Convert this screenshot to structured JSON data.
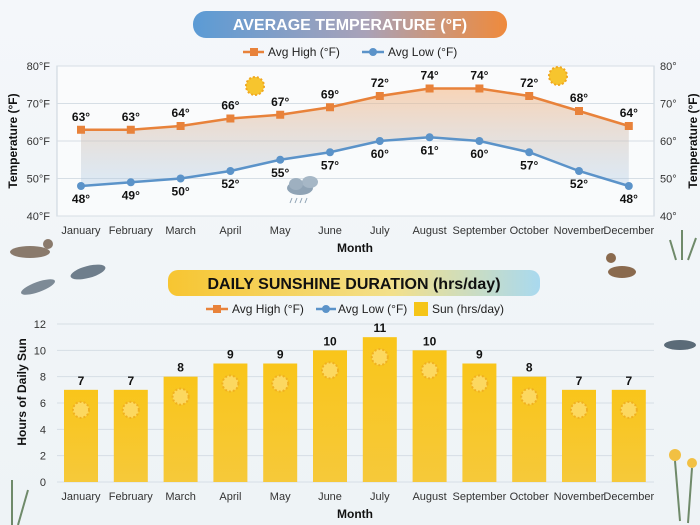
{
  "chart_data": [
    {
      "type": "line",
      "title": "AVERAGE TEMPERATURE (°F)",
      "xlabel": "Month",
      "ylabel": "Temperature (°F)",
      "ylabel_right": "Temperature (°F)",
      "categories": [
        "January",
        "February",
        "March",
        "April",
        "May",
        "June",
        "July",
        "August",
        "September",
        "October",
        "November",
        "December"
      ],
      "ylim": [
        40,
        80
      ],
      "yticks": [
        "40°F",
        "50°F",
        "60°F",
        "70°F",
        "80°F"
      ],
      "yticks_right": [
        "40°",
        "50°",
        "60°",
        "70°",
        "80°"
      ],
      "grid": true,
      "legend": "top-center",
      "series": [
        {
          "name": "Avg High (°F)",
          "color": "#e8823a",
          "values": [
            63,
            63,
            64,
            66,
            67,
            69,
            72,
            74,
            74,
            72,
            68,
            64
          ],
          "labels": [
            "63°",
            "63°",
            "64°",
            "66°",
            "67°",
            "69°",
            "72°",
            "74°",
            "74°",
            "72°",
            "68°",
            "64°"
          ]
        },
        {
          "name": "Avg Low (°F)",
          "color": "#5b93c9",
          "values": [
            48,
            49,
            50,
            52,
            55,
            57,
            60,
            61,
            60,
            57,
            52,
            48
          ],
          "labels": [
            "48°",
            "49°",
            "50°",
            "52°",
            "55°",
            "57°",
            "60°",
            "61°",
            "60°",
            "57°",
            "52°",
            "48°"
          ]
        }
      ]
    },
    {
      "type": "bar",
      "title": "DAILY SUNSHINE DURATION (hrs/day)",
      "xlabel": "Month",
      "ylabel": "Hours of Daily Sun",
      "categories": [
        "January",
        "February",
        "March",
        "April",
        "May",
        "June",
        "July",
        "August",
        "September",
        "October",
        "November",
        "December"
      ],
      "ylim": [
        0,
        12
      ],
      "yticks": [
        "0",
        "2",
        "4",
        "6",
        "8",
        "10",
        "12"
      ],
      "grid": true,
      "legend": "top-center",
      "legend_entries": [
        {
          "name": "Avg High (°F)",
          "color": "#e8823a"
        },
        {
          "name": "Avg Low (°F)",
          "color": "#5b93c9"
        },
        {
          "name": "Sun (hrs/day)",
          "color": "#f5c518"
        }
      ],
      "series": [
        {
          "name": "Sun (hrs/day)",
          "color": "#f5c518",
          "values": [
            7,
            7,
            8,
            9,
            9,
            10,
            11,
            10,
            9,
            8,
            7,
            7
          ]
        }
      ]
    }
  ]
}
